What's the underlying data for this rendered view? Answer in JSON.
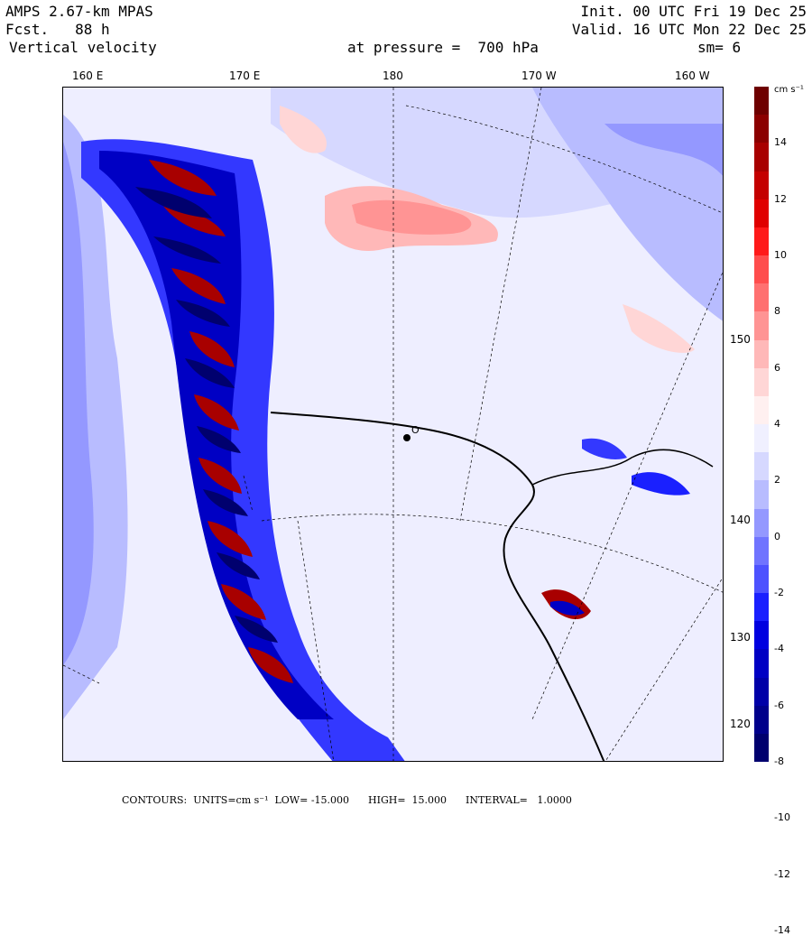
{
  "header": {
    "model": "AMPS 2.67-km MPAS",
    "forecast": "Fcst.   88 h",
    "field": "Vertical velocity",
    "pressure": "at pressure =  700 hPa",
    "init": "Init. 00 UTC Fri 19 Dec 25",
    "valid": "Valid. 16 UTC Mon 22 Dec 25",
    "smoothing": "sm= 6"
  },
  "map": {
    "longitude_labels": [
      "160 E",
      "170 E",
      "180",
      "170 W",
      "160 W"
    ],
    "latitude_labels": [
      "150 W",
      "140 W",
      "130 W",
      "120 W"
    ],
    "station_label": "O"
  },
  "colorbar": {
    "units": "cm s⁻¹",
    "ticks": [
      "14",
      "12",
      "10",
      "8",
      "6",
      "4",
      "2",
      "0",
      "-2",
      "-4",
      "-6",
      "-8",
      "-10",
      "-12",
      "-14"
    ],
    "colors": [
      "#6e0000",
      "#8b0000",
      "#a80000",
      "#c40000",
      "#e00000",
      "#ff1a1a",
      "#ff4d4d",
      "#ff7070",
      "#ff9494",
      "#ffb8b8",
      "#ffd6d6",
      "#fff0f0",
      "#f0f0ff",
      "#d6d8ff",
      "#b8bcff",
      "#9498ff",
      "#7074ff",
      "#4d52ff",
      "#1a20ff",
      "#0000e0",
      "#0000c4",
      "#0000a8",
      "#00008b",
      "#00006e"
    ]
  },
  "footer": {
    "text": "CONTOURS:  UNITS=cm s⁻¹  LOW= -15.000      HIGH=  15.000      INTERVAL=   1.0000"
  }
}
